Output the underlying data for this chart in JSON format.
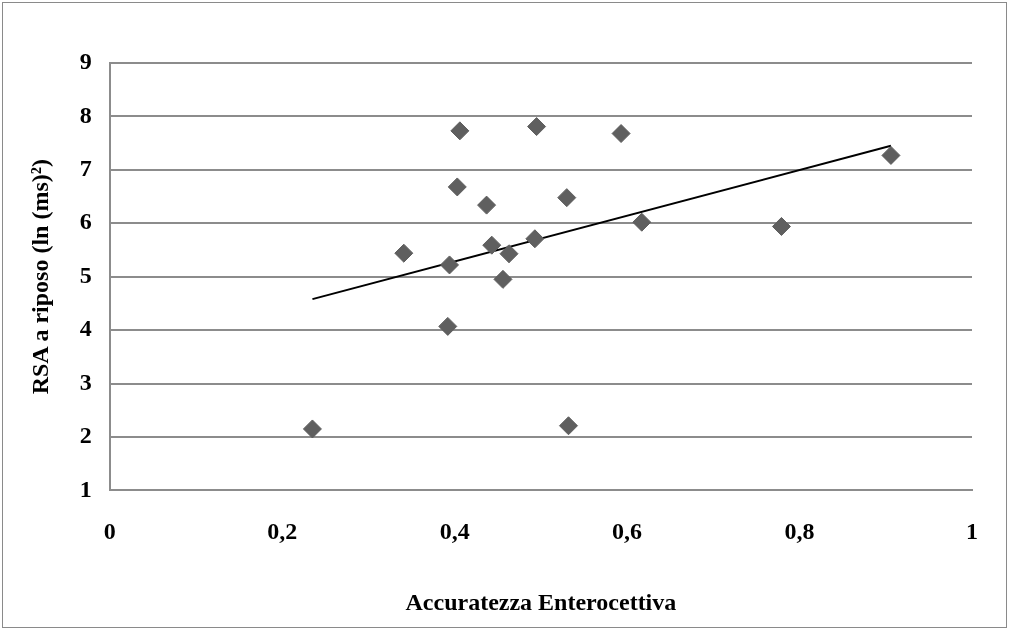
{
  "chart_data": {
    "type": "scatter",
    "xlabel": "Accuratezza Enterocettiva",
    "ylabel": "RSA a riposo (ln (ms)²)",
    "xlim": [
      0,
      1
    ],
    "xticks": [
      0,
      {
        "value": 0.2,
        "label": "0,2"
      },
      {
        "value": 0.4,
        "label": "0,4"
      },
      {
        "value": 0.6,
        "label": "0,6"
      },
      {
        "value": 0.8,
        "label": "0,8"
      },
      1
    ],
    "ylim": [
      1,
      9
    ],
    "yticks": [
      1,
      2,
      3,
      4,
      5,
      6,
      7,
      8,
      9
    ],
    "grid": "y",
    "legend": false,
    "marker": "diamond",
    "series": [
      {
        "color": "#5f5f5f",
        "x": [
          0.235,
          0.341,
          0.394,
          0.392,
          0.406,
          0.403,
          0.437,
          0.443,
          0.463,
          0.456,
          0.495,
          0.493,
          0.53,
          0.532,
          0.593,
          0.617,
          0.779,
          0.906
        ],
        "values": [
          2.15,
          5.44,
          5.22,
          4.07,
          7.73,
          6.68,
          6.34,
          5.59,
          5.43,
          4.95,
          7.81,
          5.71,
          6.48,
          2.21,
          7.68,
          6.02,
          5.94,
          7.27
        ]
      },
      {
        "type": "line",
        "color": "#000000",
        "marker": "none",
        "line_style": "solid",
        "x": [
          0.235,
          0.906
        ],
        "values": [
          4.58,
          7.45
        ]
      }
    ]
  }
}
